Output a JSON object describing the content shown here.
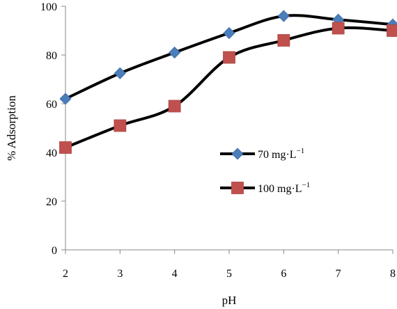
{
  "chart_data": {
    "type": "line",
    "smooth": true,
    "x": [
      2,
      3,
      4,
      5,
      6,
      7,
      8
    ],
    "xlabel": "pH",
    "ylabel": "% Adsorption",
    "xlim": [
      2,
      8
    ],
    "ylim": [
      0,
      100
    ],
    "xticks": [
      "2",
      "3",
      "4",
      "5",
      "6",
      "7",
      "8"
    ],
    "yticks": [
      "0",
      "20",
      "40",
      "60",
      "80",
      "100"
    ],
    "grid": false,
    "legend_position": "center-right",
    "series": [
      {
        "name": "70 mg·L",
        "name_sup": "−1",
        "marker": "diamond",
        "marker_color": "#4A7EBB",
        "line_color": "#000000",
        "values": [
          62,
          72.5,
          81,
          89,
          96,
          94.5,
          92.5
        ]
      },
      {
        "name": "100 mg·L",
        "name_sup": "−1",
        "marker": "square",
        "marker_color": "#C0504D",
        "line_color": "#000000",
        "values": [
          42,
          51,
          59,
          79,
          86,
          91,
          90
        ]
      }
    ]
  }
}
